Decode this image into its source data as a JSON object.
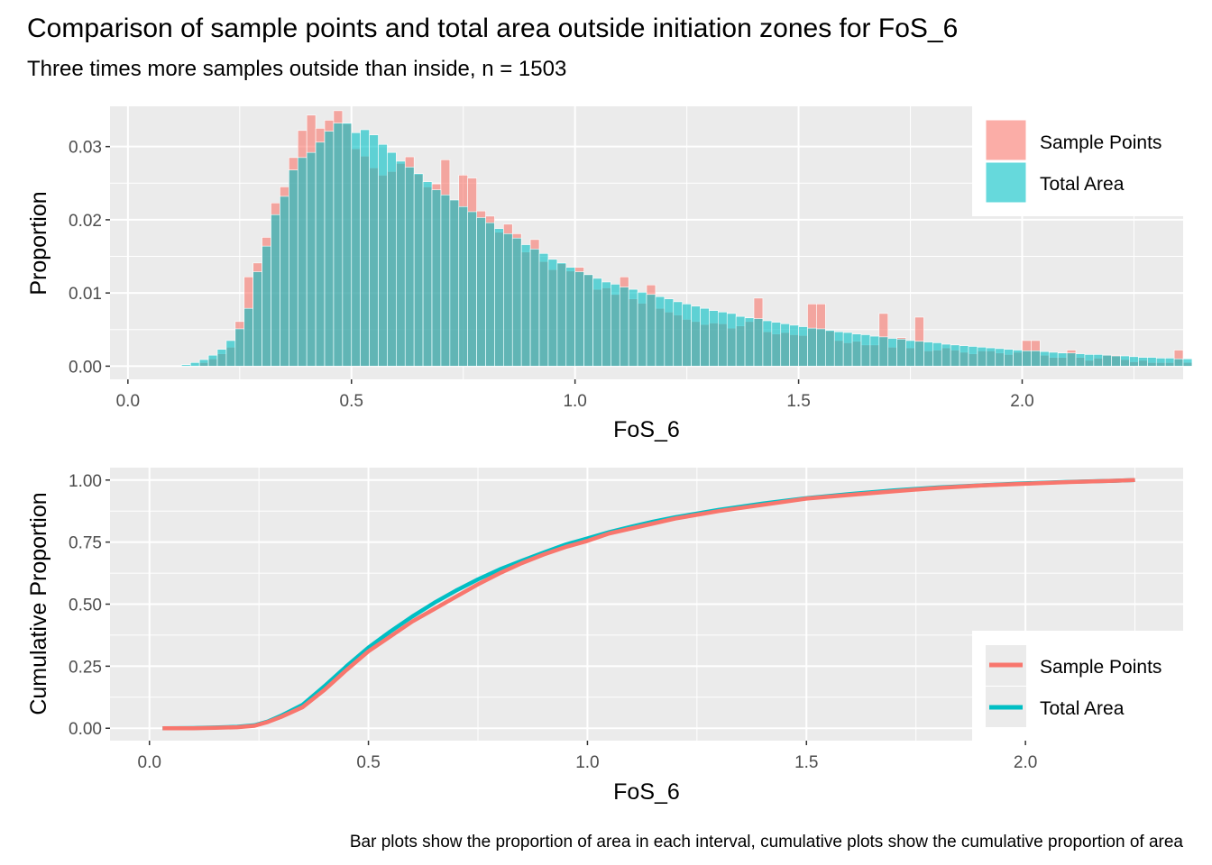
{
  "title": "Comparison of sample points and total area outside initiation zones for FoS_6",
  "subtitle": "Three times more samples outside than inside, n = 1503",
  "caption": "Bar plots show the proportion of area in each interval, cumulative plots show the cumulative proportion of area",
  "colors": {
    "sample_points": "#F8766D",
    "total_area": "#00BFC4",
    "panel_background": "#EBEBEB",
    "grid": "#FFFFFF"
  },
  "chart_data": [
    {
      "type": "bar",
      "xlabel": "FoS_6",
      "ylabel": "Proportion",
      "xlim": [
        -0.04,
        2.36
      ],
      "ylim": [
        -0.0018,
        0.0355
      ],
      "x_ticks": [
        0.0,
        0.5,
        1.0,
        1.5,
        2.0
      ],
      "x_tick_labels": [
        "0.0",
        "0.5",
        "1.0",
        "1.5",
        "2.0"
      ],
      "y_ticks": [
        0.0,
        0.01,
        0.02,
        0.03
      ],
      "y_tick_labels": [
        "0.00",
        "0.01",
        "0.02",
        "0.03"
      ],
      "grid": true,
      "legend_position": "top-right",
      "bin_start": 0.12,
      "bin_width": 0.02,
      "series": [
        {
          "name": "Sample Points",
          "color": "#F8766D",
          "values": [
            0.0,
            0.0,
            0.0005,
            0.001,
            0.0017,
            0.0026,
            0.0061,
            0.0122,
            0.0141,
            0.0176,
            0.0223,
            0.0245,
            0.0285,
            0.0322,
            0.0343,
            0.0325,
            0.0336,
            0.0349,
            0.0331,
            0.0297,
            0.0287,
            0.0271,
            0.0261,
            0.0266,
            0.0277,
            0.0286,
            0.0262,
            0.0245,
            0.0249,
            0.0282,
            0.0227,
            0.0261,
            0.0257,
            0.0212,
            0.0205,
            0.0183,
            0.0194,
            0.0181,
            0.0156,
            0.0173,
            0.0143,
            0.0132,
            0.014,
            0.013,
            0.0135,
            0.0125,
            0.0105,
            0.0107,
            0.0098,
            0.0122,
            0.0092,
            0.0086,
            0.0111,
            0.0079,
            0.0074,
            0.007,
            0.0064,
            0.0061,
            0.0057,
            0.0059,
            0.0058,
            0.0052,
            0.0055,
            0.0061,
            0.0093,
            0.0047,
            0.0044,
            0.0046,
            0.0043,
            0.0042,
            0.0085,
            0.0085,
            0.0048,
            0.0035,
            0.0032,
            0.0034,
            0.0029,
            0.0029,
            0.0072,
            0.0026,
            0.0039,
            0.0025,
            0.0067,
            0.0021,
            0.0022,
            0.0025,
            0.0022,
            0.0019,
            0.0017,
            0.0021,
            0.0021,
            0.0018,
            0.0016,
            0.0019,
            0.0035,
            0.0035,
            0.0015,
            0.0012,
            0.0012,
            0.0022,
            0.0012,
            0.0008,
            0.0011,
            0.0015,
            0.0015,
            0.0009,
            0.0006,
            0.0008,
            0.0005,
            0.0005,
            0.0005,
            0.0022,
            0.0005
          ]
        },
        {
          "name": "Total Area",
          "color": "#00BFC4",
          "values": [
            0.0002,
            0.0005,
            0.0009,
            0.0015,
            0.0023,
            0.0035,
            0.0051,
            0.0079,
            0.0129,
            0.0164,
            0.0207,
            0.0232,
            0.0268,
            0.0285,
            0.0292,
            0.0306,
            0.0321,
            0.0332,
            0.0332,
            0.0319,
            0.0323,
            0.0316,
            0.0303,
            0.0292,
            0.028,
            0.0272,
            0.0263,
            0.0252,
            0.0241,
            0.0234,
            0.0227,
            0.0218,
            0.0211,
            0.0203,
            0.0196,
            0.0188,
            0.0181,
            0.0175,
            0.0166,
            0.016,
            0.0154,
            0.0146,
            0.0141,
            0.0135,
            0.0129,
            0.0125,
            0.012,
            0.0115,
            0.0112,
            0.0108,
            0.0105,
            0.0101,
            0.0098,
            0.0095,
            0.0092,
            0.0088,
            0.0085,
            0.0082,
            0.0079,
            0.0076,
            0.0074,
            0.0072,
            0.0068,
            0.0066,
            0.0065,
            0.0062,
            0.006,
            0.0058,
            0.0056,
            0.0054,
            0.0052,
            0.0051,
            0.0049,
            0.0047,
            0.0046,
            0.0044,
            0.0043,
            0.0041,
            0.004,
            0.0038,
            0.0037,
            0.0035,
            0.0034,
            0.0033,
            0.0032,
            0.003,
            0.0029,
            0.0028,
            0.0027,
            0.0026,
            0.0025,
            0.0024,
            0.0023,
            0.0022,
            0.0021,
            0.0021,
            0.002,
            0.0019,
            0.0018,
            0.0018,
            0.0017,
            0.0016,
            0.0016,
            0.0015,
            0.0014,
            0.0014,
            0.0013,
            0.0012,
            0.0012,
            0.0011,
            0.0011,
            0.001,
            0.001
          ]
        }
      ]
    },
    {
      "type": "line",
      "xlabel": "FoS_6",
      "ylabel": "Cumulative Proportion",
      "xlim": [
        -0.09,
        2.36
      ],
      "ylim": [
        -0.05,
        1.05
      ],
      "x_ticks": [
        0.0,
        0.5,
        1.0,
        1.5,
        2.0
      ],
      "x_tick_labels": [
        "0.0",
        "0.5",
        "1.0",
        "1.5",
        "2.0"
      ],
      "y_ticks": [
        0.0,
        0.25,
        0.5,
        0.75,
        1.0
      ],
      "y_tick_labels": [
        "0.00",
        "0.25",
        "0.50",
        "0.75",
        "1.00"
      ],
      "grid": true,
      "legend_position": "bottom-right",
      "series": [
        {
          "name": "Sample Points",
          "color": "#F8766D",
          "x": [
            0.03,
            0.1,
            0.15,
            0.2,
            0.24,
            0.27,
            0.3,
            0.35,
            0.4,
            0.45,
            0.5,
            0.55,
            0.6,
            0.65,
            0.7,
            0.75,
            0.8,
            0.85,
            0.9,
            0.95,
            1.0,
            1.05,
            1.1,
            1.15,
            1.2,
            1.3,
            1.4,
            1.5,
            1.6,
            1.7,
            1.8,
            1.9,
            2.0,
            2.1,
            2.2,
            2.25
          ],
          "y": [
            0.0,
            0.0,
            0.002,
            0.004,
            0.01,
            0.025,
            0.045,
            0.085,
            0.155,
            0.235,
            0.31,
            0.37,
            0.43,
            0.48,
            0.53,
            0.58,
            0.625,
            0.665,
            0.7,
            0.73,
            0.755,
            0.785,
            0.805,
            0.825,
            0.845,
            0.875,
            0.9,
            0.925,
            0.94,
            0.955,
            0.968,
            0.978,
            0.985,
            0.992,
            0.997,
            1.0
          ]
        },
        {
          "name": "Total Area",
          "color": "#00BFC4",
          "x": [
            0.03,
            0.1,
            0.15,
            0.2,
            0.24,
            0.27,
            0.3,
            0.35,
            0.4,
            0.45,
            0.5,
            0.55,
            0.6,
            0.65,
            0.7,
            0.75,
            0.8,
            0.85,
            0.9,
            0.95,
            1.0,
            1.05,
            1.1,
            1.15,
            1.2,
            1.3,
            1.4,
            1.5,
            1.6,
            1.7,
            1.8,
            1.9,
            2.0,
            2.1,
            2.2,
            2.25
          ],
          "y": [
            0.0,
            0.001,
            0.003,
            0.006,
            0.012,
            0.027,
            0.05,
            0.095,
            0.17,
            0.25,
            0.325,
            0.39,
            0.45,
            0.505,
            0.555,
            0.6,
            0.64,
            0.675,
            0.708,
            0.74,
            0.765,
            0.79,
            0.812,
            0.832,
            0.85,
            0.88,
            0.905,
            0.927,
            0.944,
            0.958,
            0.97,
            0.979,
            0.987,
            0.993,
            0.997,
            1.0
          ]
        }
      ]
    }
  ]
}
